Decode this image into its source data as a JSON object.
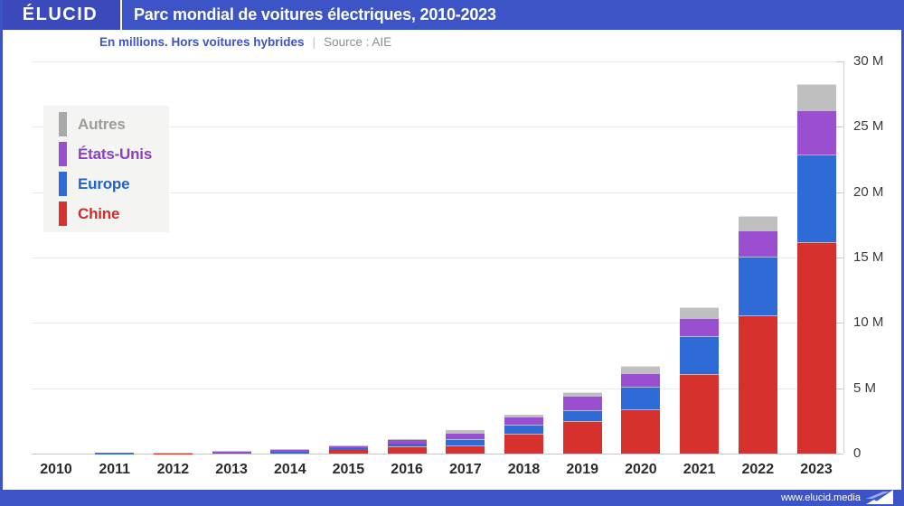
{
  "header": {
    "logo": "ÉLUCID",
    "title": "Parc mondial de voitures électriques, 2010-2023",
    "subtitle": "En millions. Hors voitures hybrides",
    "subtitle_separator": "|",
    "source": "Source : AIE"
  },
  "footer": {
    "url": "www.elucid.media"
  },
  "colors": {
    "header_bg": "#3D54C6",
    "logo_bg": "#3A4ABB",
    "chine": "#D7312E",
    "europe": "#2E6BD6",
    "etats_unis": "#9A4FD1",
    "autres": "#BFBFBF",
    "gridline": "#EBEBEB",
    "baseline": "#C6C6C6"
  },
  "legend": [
    {
      "label": "Autres",
      "swatch": "#A9A9A9",
      "text": "#9C9C9C"
    },
    {
      "label": "États-Unis",
      "swatch": "#9A4FD1",
      "text": "#8E3EC6"
    },
    {
      "label": "Europe",
      "swatch": "#2E6BD6",
      "text": "#1F64D0"
    },
    {
      "label": "Chine",
      "swatch": "#D7312E",
      "text": "#D42A2A"
    }
  ],
  "chart_data": {
    "type": "bar",
    "stacked": true,
    "title": "Parc mondial de voitures électriques, 2010-2023",
    "subtitle": "En millions. Hors voitures hybrides",
    "source": "AIE",
    "unit": "millions de voitures électriques (hors hybrides)",
    "categories": [
      "2010",
      "2011",
      "2012",
      "2013",
      "2014",
      "2015",
      "2016",
      "2017",
      "2018",
      "2019",
      "2020",
      "2021",
      "2022",
      "2023"
    ],
    "series": [
      {
        "name": "Chine",
        "color": "#D7312E",
        "values": [
          0.005,
          0.01,
          0.02,
          0.04,
          0.08,
          0.25,
          0.55,
          0.65,
          1.55,
          2.5,
          3.4,
          6.1,
          10.6,
          16.2
        ]
      },
      {
        "name": "Europe",
        "color": "#2E6BD6",
        "values": [
          0.005,
          0.015,
          0.03,
          0.06,
          0.09,
          0.15,
          0.2,
          0.45,
          0.65,
          0.85,
          1.7,
          2.9,
          4.5,
          6.7
        ]
      },
      {
        "name": "États-Unis",
        "color": "#9A4FD1",
        "values": [
          0.005,
          0.02,
          0.04,
          0.1,
          0.13,
          0.18,
          0.33,
          0.5,
          0.6,
          1.05,
          1.05,
          1.4,
          2.0,
          3.4
        ]
      },
      {
        "name": "Autres",
        "color": "#BFBFBF",
        "values": [
          0.005,
          0.005,
          0.01,
          0.03,
          0.03,
          0.04,
          0.06,
          0.18,
          0.2,
          0.3,
          0.55,
          0.8,
          1.1,
          2.0
        ]
      }
    ],
    "totals": [
      0.02,
      0.05,
      0.1,
      0.23,
      0.33,
      0.62,
      1.14,
      1.78,
      3.0,
      4.7,
      6.7,
      11.2,
      18.2,
      28.3
    ],
    "xlabel": "",
    "ylabel": "",
    "ylim": [
      0,
      30
    ],
    "y_ticks": [
      "0",
      "5 M",
      "10 M",
      "15 M",
      "20 M",
      "25 M",
      "30 M"
    ],
    "y_tick_values": [
      0,
      5,
      10,
      15,
      20,
      25,
      30
    ],
    "grid": true,
    "legend_position": "top-left",
    "y_axis_side": "right"
  }
}
